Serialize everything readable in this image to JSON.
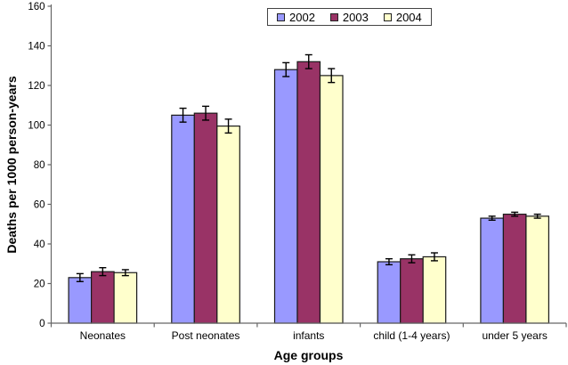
{
  "chart_data": {
    "type": "bar",
    "title": "",
    "xlabel": "Age groups",
    "ylabel": "Deaths per 1000 person-years",
    "ylim": [
      0,
      160
    ],
    "ytick_step": 20,
    "grid": false,
    "legend_position": "top-center",
    "error_bars": true,
    "categories": [
      "Neonates",
      "Post neonates",
      "infants",
      "child (1-4 years)",
      "under 5 years"
    ],
    "series": [
      {
        "name": "2002",
        "color": "#9999FF",
        "values": [
          23,
          105,
          128,
          31,
          53
        ],
        "errors": [
          2,
          3.5,
          3.5,
          1.5,
          1
        ]
      },
      {
        "name": "2003",
        "color": "#993366",
        "values": [
          26,
          106,
          132,
          32.5,
          55
        ],
        "errors": [
          2,
          3.5,
          3.5,
          2,
          1
        ]
      },
      {
        "name": "2004",
        "color": "#FFFFCC",
        "values": [
          25.5,
          99.5,
          125,
          33.5,
          54
        ],
        "errors": [
          1.5,
          3.5,
          3.5,
          2,
          1
        ]
      }
    ],
    "bar_border_color": "#1a1a1a",
    "error_bar_color": "#000000",
    "axis_color": "#666666",
    "text_color": "#000000"
  }
}
